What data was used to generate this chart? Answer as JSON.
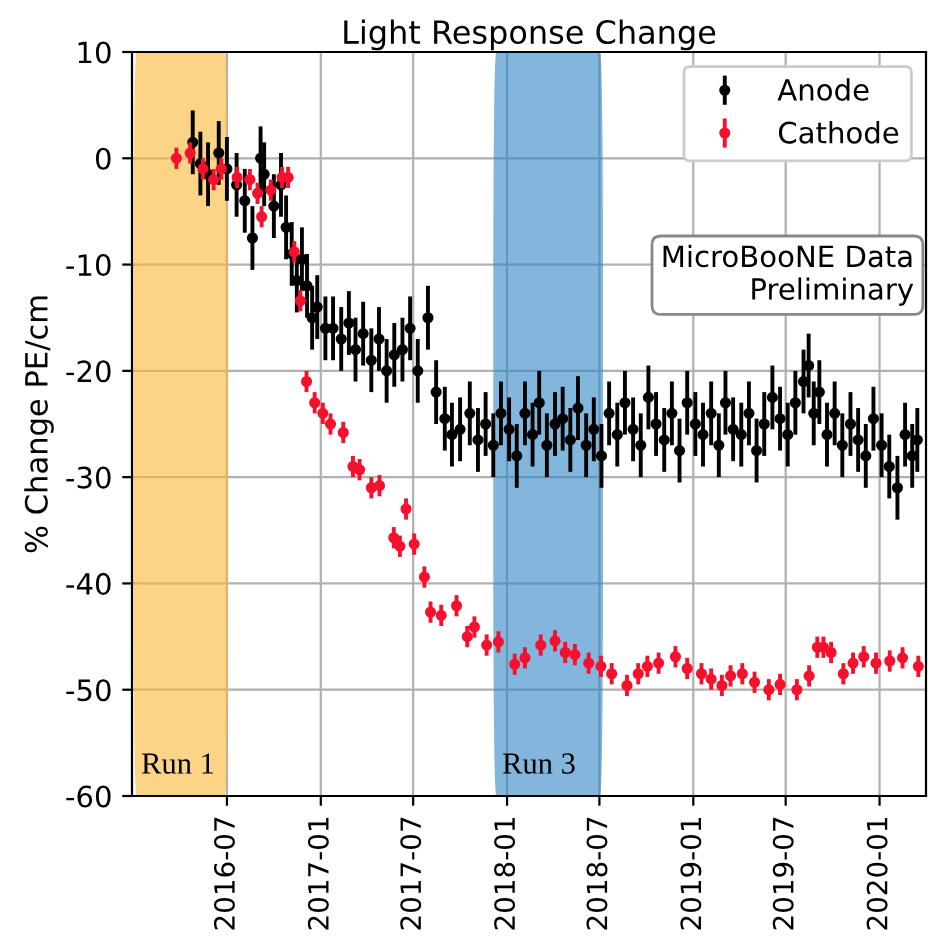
{
  "chart_data": {
    "type": "scatter",
    "title": "Light Response Change",
    "ylabel": "% Change PE/cm",
    "xlim": [
      "2015-12-28",
      "2020-04-01"
    ],
    "xticks": [
      "2016-07",
      "2017-01",
      "2017-07",
      "2018-01",
      "2018-07",
      "2019-01",
      "2019-07",
      "2020-01"
    ],
    "ylim": [
      -60,
      10
    ],
    "yticks": [
      -60,
      -50,
      -40,
      -30,
      -20,
      -10,
      0,
      10
    ],
    "grid": true,
    "legend": "top right",
    "marker": "circle",
    "annotations": [
      "MicroBooNE Data\nPreliminary"
    ],
    "bands": [
      {
        "axis": "x",
        "from": "2015-12-31",
        "to": "2016-07-03",
        "label": "Run 1",
        "color": "#fbb735"
      },
      {
        "axis": "x",
        "from": "2017-12-05",
        "to": "2018-07-08",
        "label": "Run 3",
        "color": "#2f86c4"
      }
    ],
    "series": [
      {
        "name": "Anode",
        "color": "#000000",
        "x": [
          "2016-04-25",
          "2016-05-10",
          "2016-05-25",
          "2016-06-15",
          "2016-07-01",
          "2016-07-20",
          "2016-08-05",
          "2016-08-20",
          "2016-09-05",
          "2016-09-12",
          "2016-10-01",
          "2016-10-15",
          "2016-10-25",
          "2016-11-05",
          "2016-11-15",
          "2016-11-25",
          "2016-12-05",
          "2016-12-15",
          "2016-12-25",
          "2017-01-10",
          "2017-01-25",
          "2017-02-10",
          "2017-02-25",
          "2017-03-10",
          "2017-03-25",
          "2017-04-10",
          "2017-04-25",
          "2017-05-10",
          "2017-05-25",
          "2017-06-10",
          "2017-06-25",
          "2017-07-10",
          "2017-07-30",
          "2017-08-15",
          "2017-09-01",
          "2017-09-15",
          "2017-10-01",
          "2017-10-20",
          "2017-11-05",
          "2017-11-20",
          "2017-12-05",
          "2017-12-20",
          "2018-01-05",
          "2018-01-20",
          "2018-02-05",
          "2018-02-20",
          "2018-03-05",
          "2018-03-20",
          "2018-04-05",
          "2018-04-20",
          "2018-05-05",
          "2018-05-20",
          "2018-06-05",
          "2018-06-20",
          "2018-07-05",
          "2018-07-20",
          "2018-08-05",
          "2018-08-20",
          "2018-09-05",
          "2018-09-20",
          "2018-10-05",
          "2018-10-20",
          "2018-11-05",
          "2018-11-20",
          "2018-12-05",
          "2018-12-20",
          "2019-01-05",
          "2019-01-20",
          "2019-02-05",
          "2019-02-20",
          "2019-03-05",
          "2019-03-20",
          "2019-04-05",
          "2019-04-20",
          "2019-05-05",
          "2019-05-20",
          "2019-06-05",
          "2019-06-20",
          "2019-07-05",
          "2019-07-20",
          "2019-08-05",
          "2019-08-15",
          "2019-08-25",
          "2019-09-05",
          "2019-09-20",
          "2019-10-05",
          "2019-10-20",
          "2019-11-05",
          "2019-11-20",
          "2019-12-05",
          "2019-12-20",
          "2020-01-05",
          "2020-01-20",
          "2020-02-05",
          "2020-02-20",
          "2020-03-05",
          "2020-03-15"
        ],
        "values": [
          1.5,
          -0.5,
          -1.5,
          0.5,
          -1,
          -2.5,
          -4,
          -7.5,
          0,
          -1.5,
          -4.5,
          -2.5,
          -6.5,
          -9,
          -11.5,
          -9.5,
          -12,
          -15,
          -14,
          -16,
          -16,
          -17,
          -15.5,
          -18,
          -16.5,
          -19,
          -17,
          -20,
          -18.5,
          -18,
          -16,
          -20,
          -15,
          -22,
          -24.5,
          -26,
          -25.5,
          -24,
          -26.5,
          -25,
          -27,
          -24,
          -25.5,
          -28,
          -24,
          -26,
          -23,
          -27,
          -25,
          -24.5,
          -26.5,
          -23.5,
          -27,
          -25.5,
          -28,
          -24,
          -26,
          -23,
          -25.5,
          -27,
          -22.5,
          -25,
          -26.5,
          -24,
          -27.5,
          -23,
          -25,
          -26,
          -24,
          -27,
          -23,
          -25.5,
          -26,
          -24,
          -27.5,
          -25,
          -22.5,
          -24.5,
          -26,
          -23,
          -21,
          -19.5,
          -24,
          -22,
          -26,
          -24,
          -27,
          -25,
          -26.5,
          -28,
          -24.5,
          -27,
          -29,
          -31,
          -26,
          -28,
          -26.5
        ],
        "errors": [
          3,
          3,
          3,
          3,
          3,
          3,
          3,
          3,
          3,
          3,
          3,
          3,
          3,
          3,
          3,
          3,
          3,
          3,
          3,
          3,
          3,
          3,
          3,
          3,
          3,
          3,
          3,
          3,
          3,
          3,
          3,
          3,
          3,
          3,
          3,
          3,
          3,
          3,
          3,
          3,
          3,
          3,
          3,
          3,
          3,
          3,
          3,
          3,
          3,
          3,
          3,
          3,
          3,
          3,
          3,
          3,
          3,
          3,
          3,
          3,
          3,
          3,
          3,
          3,
          3,
          3,
          3,
          3,
          3,
          3,
          3,
          3,
          3,
          3,
          3,
          3,
          3,
          3,
          3,
          3,
          3,
          3,
          3,
          3,
          3,
          3,
          3,
          3,
          3,
          3,
          3,
          3,
          3,
          3,
          3,
          3,
          3
        ]
      },
      {
        "name": "Cathode",
        "color": "#f5112e",
        "x": [
          "2016-03-24",
          "2016-04-20",
          "2016-05-15",
          "2016-06-05",
          "2016-06-20",
          "2016-07-21",
          "2016-08-15",
          "2016-08-30",
          "2016-09-07",
          "2016-09-25",
          "2016-10-17",
          "2016-10-29",
          "2016-11-10",
          "2016-11-22",
          "2016-12-04",
          "2016-12-20",
          "2017-01-05",
          "2017-01-20",
          "2017-02-14",
          "2017-03-05",
          "2017-03-18",
          "2017-04-10",
          "2017-04-26",
          "2017-05-24",
          "2017-06-05",
          "2017-06-17",
          "2017-07-03",
          "2017-07-23",
          "2017-08-04",
          "2017-08-25",
          "2017-09-24",
          "2017-10-15",
          "2017-10-29",
          "2017-11-22",
          "2017-12-15",
          "2018-01-16",
          "2018-02-05",
          "2018-03-08",
          "2018-04-05",
          "2018-04-25",
          "2018-05-14",
          "2018-06-10",
          "2018-07-04",
          "2018-07-25",
          "2018-08-24",
          "2018-09-15",
          "2018-10-03",
          "2018-10-25",
          "2018-11-27",
          "2018-12-20",
          "2019-01-17",
          "2019-02-05",
          "2019-02-26",
          "2019-03-15",
          "2019-04-07",
          "2019-05-01",
          "2019-05-29",
          "2019-06-20",
          "2019-07-23",
          "2019-08-16",
          "2019-09-01",
          "2019-09-13",
          "2019-09-28",
          "2019-10-22",
          "2019-11-10",
          "2019-12-01",
          "2019-12-25",
          "2020-01-21",
          "2020-02-15",
          "2020-03-17"
        ],
        "values": [
          0,
          0.5,
          -1,
          -2,
          -1,
          -1.8,
          -2,
          -3.3,
          -5.5,
          -3,
          -1.8,
          -1.8,
          -8.8,
          -13.4,
          -21,
          -23,
          -24,
          -25,
          -25.8,
          -29,
          -29.3,
          -31,
          -30.8,
          -35.7,
          -36.5,
          -33,
          -36.3,
          -39.4,
          -42.7,
          -43,
          -42.1,
          -45,
          -44.1,
          -45.8,
          -45.5,
          -47.6,
          -47,
          -45.8,
          -45.4,
          -46.5,
          -46.7,
          -47.5,
          -47.8,
          -48.5,
          -49.6,
          -48.5,
          -47.8,
          -47.5,
          -46.9,
          -48,
          -48.5,
          -49,
          -49.6,
          -48.7,
          -48.5,
          -49.3,
          -50,
          -49.5,
          -50,
          -48.7,
          -46,
          -46,
          -46.5,
          -48.5,
          -47.5,
          -46.9,
          -47.5,
          -47.3,
          -47,
          -47.8
        ],
        "errors": [
          1,
          1,
          1,
          1,
          1,
          1,
          1,
          1,
          1,
          1,
          1,
          1,
          1,
          1,
          1,
          1,
          1,
          1,
          1,
          1,
          1,
          1,
          1,
          1,
          1,
          1,
          1,
          1,
          1,
          1,
          1,
          1,
          1,
          1,
          1,
          1,
          1,
          1,
          1,
          1,
          1,
          1,
          1,
          1,
          1,
          1,
          1,
          1,
          1,
          1,
          1,
          1,
          1,
          1,
          1,
          1,
          1,
          1,
          1,
          1,
          1,
          1,
          1,
          1,
          1,
          1,
          1,
          1,
          1,
          1
        ]
      }
    ]
  }
}
